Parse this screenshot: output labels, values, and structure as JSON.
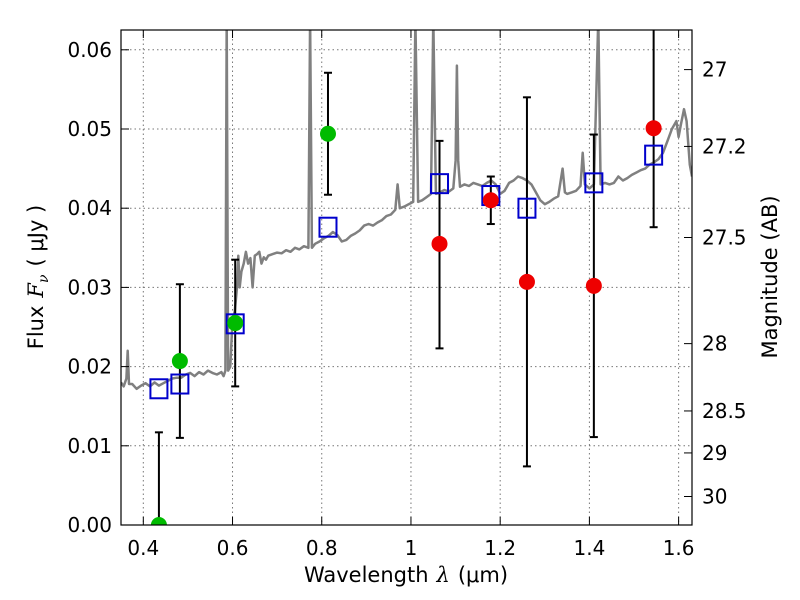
{
  "chart_data": {
    "type": "scatter",
    "title": "",
    "xlabel": "Wavelength",
    "xlabel_symbol": "λ",
    "xlabel_unit": "(μm)",
    "ylabel_left": "Flux",
    "ylabel_left_symbol": "F",
    "ylabel_left_subscript": "ν",
    "ylabel_left_unit": "( μJy )",
    "ylabel_right": "Magnitude (AB)",
    "xlim": [
      0.35,
      1.63
    ],
    "ylim": [
      0.0,
      0.0625
    ],
    "grid": true,
    "x_ticks": [
      0.4,
      0.6,
      0.8,
      1.0,
      1.2,
      1.4,
      1.6
    ],
    "x_tick_labels": [
      "0.4",
      "0.6",
      "0.8",
      "1",
      "1.2",
      "1.4",
      "1.6"
    ],
    "y_ticks": [
      0.0,
      0.01,
      0.02,
      0.03,
      0.04,
      0.05,
      0.06
    ],
    "y_tick_labels": [
      "0.00",
      "0.01",
      "0.02",
      "0.03",
      "0.04",
      "0.05",
      "0.06"
    ],
    "right_ticks": [
      {
        "label": "27",
        "flux": 0.0575
      },
      {
        "label": "27.2",
        "flux": 0.0478
      },
      {
        "label": "27.5",
        "flux": 0.0363
      },
      {
        "label": "28",
        "flux": 0.0229
      },
      {
        "label": "28.5",
        "flux": 0.0144
      },
      {
        "label": "29",
        "flux": 0.0091
      },
      {
        "label": "30",
        "flux": 0.0036
      }
    ],
    "colors": {
      "template": "#808080",
      "green": "#00bb00",
      "red": "#ee0000",
      "model": "#0000cc",
      "errorbar": "#000000",
      "grid": "#777777"
    },
    "series": [
      {
        "name": "model template spectrum",
        "kind": "line",
        "points": [
          [
            0.35,
            0.018
          ],
          [
            0.356,
            0.0175
          ],
          [
            0.362,
            0.0185
          ],
          [
            0.365,
            0.022
          ],
          [
            0.368,
            0.0178
          ],
          [
            0.375,
            0.0178
          ],
          [
            0.385,
            0.0172
          ],
          [
            0.395,
            0.0176
          ],
          [
            0.405,
            0.0179
          ],
          [
            0.415,
            0.0175
          ],
          [
            0.425,
            0.018
          ],
          [
            0.435,
            0.0176
          ],
          [
            0.445,
            0.0179
          ],
          [
            0.455,
            0.0182
          ],
          [
            0.465,
            0.0185
          ],
          [
            0.475,
            0.0186
          ],
          [
            0.485,
            0.0186
          ],
          [
            0.495,
            0.019
          ],
          [
            0.505,
            0.0192
          ],
          [
            0.515,
            0.0188
          ],
          [
            0.525,
            0.0193
          ],
          [
            0.535,
            0.019
          ],
          [
            0.545,
            0.0195
          ],
          [
            0.555,
            0.0192
          ],
          [
            0.565,
            0.019
          ],
          [
            0.575,
            0.0193
          ],
          [
            0.58,
            0.0188
          ],
          [
            0.584,
            0.0195
          ],
          [
            0.587,
            0.064
          ],
          [
            0.59,
            0.0195
          ],
          [
            0.595,
            0.02
          ],
          [
            0.6,
            0.026
          ],
          [
            0.605,
            0.027
          ],
          [
            0.61,
            0.03
          ],
          [
            0.613,
            0.034
          ],
          [
            0.616,
            0.03
          ],
          [
            0.62,
            0.032
          ],
          [
            0.625,
            0.033
          ],
          [
            0.63,
            0.0345
          ],
          [
            0.635,
            0.033
          ],
          [
            0.64,
            0.0337
          ],
          [
            0.645,
            0.03
          ],
          [
            0.65,
            0.034
          ],
          [
            0.655,
            0.0342
          ],
          [
            0.66,
            0.0345
          ],
          [
            0.665,
            0.033
          ],
          [
            0.67,
            0.0338
          ],
          [
            0.675,
            0.0335
          ],
          [
            0.68,
            0.034
          ],
          [
            0.69,
            0.0342
          ],
          [
            0.7,
            0.0344
          ],
          [
            0.71,
            0.0343
          ],
          [
            0.72,
            0.0347
          ],
          [
            0.73,
            0.0345
          ],
          [
            0.74,
            0.035
          ],
          [
            0.75,
            0.0348
          ],
          [
            0.76,
            0.0352
          ],
          [
            0.77,
            0.035
          ],
          [
            0.774,
            0.064
          ],
          [
            0.778,
            0.035
          ],
          [
            0.785,
            0.0355
          ],
          [
            0.795,
            0.0358
          ],
          [
            0.805,
            0.0362
          ],
          [
            0.815,
            0.0365
          ],
          [
            0.825,
            0.037
          ],
          [
            0.835,
            0.0366
          ],
          [
            0.845,
            0.0358
          ],
          [
            0.855,
            0.036
          ],
          [
            0.865,
            0.0365
          ],
          [
            0.875,
            0.0368
          ],
          [
            0.885,
            0.0372
          ],
          [
            0.895,
            0.0378
          ],
          [
            0.905,
            0.038
          ],
          [
            0.915,
            0.0378
          ],
          [
            0.925,
            0.0382
          ],
          [
            0.935,
            0.0385
          ],
          [
            0.945,
            0.039
          ],
          [
            0.955,
            0.0392
          ],
          [
            0.965,
            0.0398
          ],
          [
            0.97,
            0.043
          ],
          [
            0.975,
            0.04
          ],
          [
            0.985,
            0.0402
          ],
          [
            0.995,
            0.0405
          ],
          [
            1.005,
            0.0408
          ],
          [
            1.01,
            0.064
          ],
          [
            1.016,
            0.0408
          ],
          [
            1.025,
            0.041
          ],
          [
            1.035,
            0.0414
          ],
          [
            1.045,
            0.0418
          ],
          [
            1.05,
            0.064
          ],
          [
            1.056,
            0.0418
          ],
          [
            1.065,
            0.042
          ],
          [
            1.075,
            0.0423
          ],
          [
            1.085,
            0.0421
          ],
          [
            1.095,
            0.0425
          ],
          [
            1.1,
            0.046
          ],
          [
            1.103,
            0.058
          ],
          [
            1.106,
            0.046
          ],
          [
            1.11,
            0.0427
          ],
          [
            1.12,
            0.043
          ],
          [
            1.13,
            0.0428
          ],
          [
            1.14,
            0.0432
          ],
          [
            1.15,
            0.043
          ],
          [
            1.16,
            0.0428
          ],
          [
            1.17,
            0.0432
          ],
          [
            1.18,
            0.0435
          ],
          [
            1.19,
            0.043
          ],
          [
            1.2,
            0.0418
          ],
          [
            1.21,
            0.0422
          ],
          [
            1.22,
            0.0432
          ],
          [
            1.23,
            0.0435
          ],
          [
            1.24,
            0.044
          ],
          [
            1.25,
            0.0438
          ],
          [
            1.26,
            0.0435
          ],
          [
            1.27,
            0.043
          ],
          [
            1.28,
            0.042
          ],
          [
            1.29,
            0.041
          ],
          [
            1.3,
            0.0405
          ],
          [
            1.31,
            0.0408
          ],
          [
            1.32,
            0.0412
          ],
          [
            1.33,
            0.0415
          ],
          [
            1.34,
            0.045
          ],
          [
            1.345,
            0.042
          ],
          [
            1.35,
            0.0418
          ],
          [
            1.36,
            0.042
          ],
          [
            1.37,
            0.0422
          ],
          [
            1.38,
            0.0428
          ],
          [
            1.385,
            0.047
          ],
          [
            1.39,
            0.043
          ],
          [
            1.4,
            0.0425
          ],
          [
            1.41,
            0.043
          ],
          [
            1.42,
            0.064
          ],
          [
            1.425,
            0.043
          ],
          [
            1.435,
            0.0432
          ],
          [
            1.445,
            0.043
          ],
          [
            1.455,
            0.0432
          ],
          [
            1.465,
            0.044
          ],
          [
            1.475,
            0.0435
          ],
          [
            1.485,
            0.0438
          ],
          [
            1.495,
            0.0442
          ],
          [
            1.505,
            0.0445
          ],
          [
            1.515,
            0.0448
          ],
          [
            1.525,
            0.045
          ],
          [
            1.535,
            0.0455
          ],
          [
            1.545,
            0.0458
          ],
          [
            1.555,
            0.0462
          ],
          [
            1.565,
            0.047
          ],
          [
            1.575,
            0.0485
          ],
          [
            1.585,
            0.05
          ],
          [
            1.595,
            0.051
          ],
          [
            1.6,
            0.049
          ],
          [
            1.605,
            0.0505
          ],
          [
            1.612,
            0.0525
          ],
          [
            1.618,
            0.051
          ],
          [
            1.625,
            0.0455
          ],
          [
            1.63,
            0.044
          ]
        ]
      },
      {
        "name": "observed flux (green)",
        "kind": "points_with_errors",
        "color_key": "green",
        "points": [
          {
            "x": 0.435,
            "y": 0.0,
            "err_lo": 0.0,
            "err_hi": 0.0117
          },
          {
            "x": 0.482,
            "y": 0.0207,
            "err_lo": 0.0097,
            "err_hi": 0.0097
          },
          {
            "x": 0.606,
            "y": 0.0255,
            "err_lo": 0.008,
            "err_hi": 0.008
          },
          {
            "x": 0.814,
            "y": 0.0494,
            "err_lo": 0.0077,
            "err_hi": 0.0077
          }
        ]
      },
      {
        "name": "observed flux (red)",
        "kind": "points_with_errors",
        "color_key": "red",
        "points": [
          {
            "x": 1.064,
            "y": 0.0355,
            "err_lo": 0.0132,
            "err_hi": 0.013
          },
          {
            "x": 1.179,
            "y": 0.041,
            "err_lo": 0.003,
            "err_hi": 0.003
          },
          {
            "x": 1.26,
            "y": 0.0307,
            "err_lo": 0.0233,
            "err_hi": 0.0233
          },
          {
            "x": 1.41,
            "y": 0.0302,
            "err_lo": 0.0191,
            "err_hi": 0.0191
          },
          {
            "x": 1.544,
            "y": 0.0501,
            "err_lo": 0.0125,
            "err_hi": 0.0125
          }
        ]
      },
      {
        "name": "model band flux",
        "kind": "squares",
        "color_key": "model",
        "points": [
          {
            "x": 0.435,
            "y": 0.0172
          },
          {
            "x": 0.482,
            "y": 0.0178
          },
          {
            "x": 0.606,
            "y": 0.0254
          },
          {
            "x": 0.814,
            "y": 0.0376
          },
          {
            "x": 1.064,
            "y": 0.0431
          },
          {
            "x": 1.179,
            "y": 0.0416
          },
          {
            "x": 1.26,
            "y": 0.04
          },
          {
            "x": 1.41,
            "y": 0.0432
          },
          {
            "x": 1.544,
            "y": 0.0467
          }
        ]
      }
    ]
  }
}
